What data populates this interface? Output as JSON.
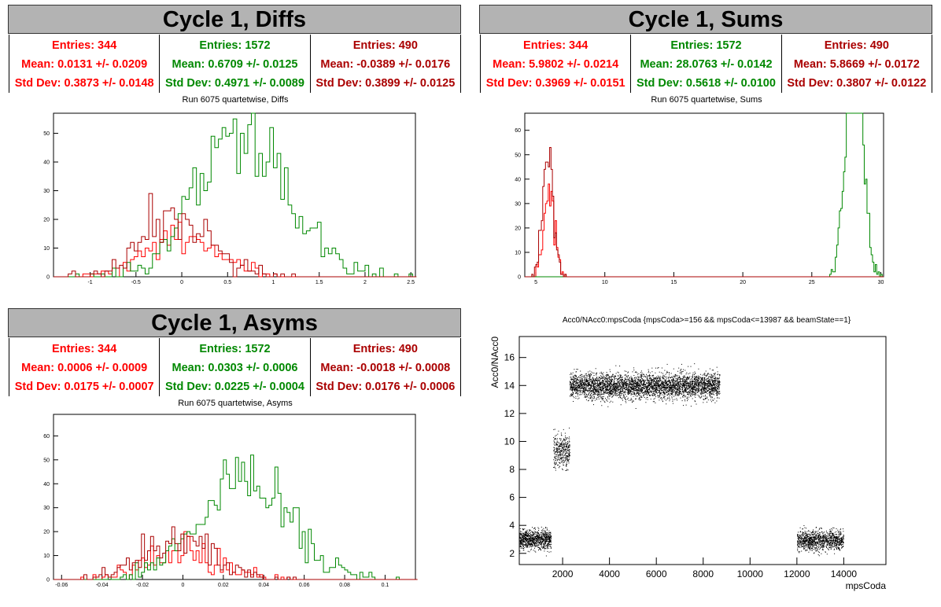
{
  "panels": {
    "diffs": {
      "banner": "Cycle 1, Diffs",
      "stats": [
        {
          "entries": "Entries: 344",
          "mean": "Mean: 0.0131 +/- 0.0209",
          "std": "Std Dev: 0.3873 +/- 0.0148",
          "color": "#ff0000"
        },
        {
          "entries": "Entries: 1572",
          "mean": "Mean: 0.6709 +/- 0.0125",
          "std": "Std Dev: 0.4971 +/- 0.0089",
          "color": "#008800"
        },
        {
          "entries": "Entries: 490",
          "mean": "Mean: -0.0389 +/- 0.0176",
          "std": "Std Dev: 0.3899 +/- 0.0125",
          "color": "#aa0000"
        }
      ],
      "plot_title": "Run 6075 quartetwise, Diffs"
    },
    "sums": {
      "banner": "Cycle 1, Sums",
      "stats": [
        {
          "entries": "Entries: 344",
          "mean": "Mean: 5.9802 +/- 0.0214",
          "std": "Std Dev: 0.3969 +/- 0.0151",
          "color": "#ff0000"
        },
        {
          "entries": "Entries: 1572",
          "mean": "Mean: 28.0763 +/- 0.0142",
          "std": "Std Dev: 0.5618 +/- 0.0100",
          "color": "#008800"
        },
        {
          "entries": "Entries: 490",
          "mean": "Mean: 5.8669 +/- 0.0172",
          "std": "Std Dev: 0.3807 +/- 0.0122",
          "color": "#aa0000"
        }
      ],
      "plot_title": "Run 6075 quartetwise, Sums"
    },
    "asyms": {
      "banner": "Cycle 1, Asyms",
      "stats": [
        {
          "entries": "Entries: 344",
          "mean": "Mean: 0.0006 +/- 0.0009",
          "std": "Std Dev: 0.0175 +/- 0.0007",
          "color": "#ff0000"
        },
        {
          "entries": "Entries: 1572",
          "mean": "Mean: 0.0303 +/- 0.0006",
          "std": "Std Dev: 0.0225 +/- 0.0004",
          "color": "#008800"
        },
        {
          "entries": "Entries: 490",
          "mean": "Mean: -0.0018 +/- 0.0008",
          "std": "Std Dev: 0.0176 +/- 0.0006",
          "color": "#aa0000"
        }
      ],
      "plot_title": "Run 6075 quartetwise, Asyms"
    },
    "scatter": {
      "plot_title": "Acc0/NAcc0:mpsCoda {mpsCoda>=156 && mpsCoda<=13987 && beamState==1}"
    }
  },
  "chart_data": [
    {
      "id": "diffs",
      "type": "bar",
      "title": "Run 6075 quartetwise, Diffs",
      "xlim": [
        -1.4,
        2.55
      ],
      "ylim": [
        0,
        57
      ],
      "xticks": [
        "-1",
        "-0.5",
        "0",
        "0.5",
        "1",
        "1.5",
        "2",
        "2.5"
      ],
      "yticks": [
        "0",
        "10",
        "20",
        "30",
        "40",
        "50"
      ],
      "series": [
        {
          "name": "Entries: 344",
          "color": "#ff0000",
          "shape": "gauss",
          "mean": 0.0131,
          "std": 0.3873,
          "n": 344,
          "bin": 0.04
        },
        {
          "name": "Entries: 1572",
          "color": "#008800",
          "shape": "gauss",
          "mean": 0.6709,
          "std": 0.4971,
          "n": 1572,
          "bin": 0.04
        },
        {
          "name": "Entries: 490",
          "color": "#aa0000",
          "shape": "gauss",
          "mean": -0.0389,
          "std": 0.3899,
          "n": 490,
          "bin": 0.04
        }
      ]
    },
    {
      "id": "sums",
      "type": "bar",
      "title": "Run 6075 quartetwise, Sums",
      "xlim": [
        4.2,
        30.2
      ],
      "ylim": [
        0,
        67
      ],
      "xticks": [
        "5",
        "10",
        "15",
        "20",
        "25",
        "30"
      ],
      "yticks": [
        "0",
        "10",
        "20",
        "30",
        "40",
        "50",
        "60"
      ],
      "series": [
        {
          "name": "Entries: 344",
          "color": "#ff0000",
          "shape": "gauss",
          "mean": 5.9802,
          "std": 0.3969,
          "n": 344,
          "bin": 0.1
        },
        {
          "name": "Entries: 1572",
          "color": "#008800",
          "shape": "gauss",
          "mean": 28.0763,
          "std": 0.5618,
          "n": 1572,
          "bin": 0.1
        },
        {
          "name": "Entries: 490",
          "color": "#aa0000",
          "shape": "gauss",
          "mean": 5.8669,
          "std": 0.3807,
          "n": 490,
          "bin": 0.1
        }
      ]
    },
    {
      "id": "asyms",
      "type": "bar",
      "title": "Run 6075 quartetwise, Asyms",
      "xlim": [
        -0.064,
        0.115
      ],
      "ylim": [
        0,
        69
      ],
      "xticks": [
        "-0.06",
        "-0.04",
        "-0.02",
        "0",
        "0.02",
        "0.04",
        "0.06",
        "0.08",
        "0.1"
      ],
      "yticks": [
        "0",
        "10",
        "20",
        "30",
        "40",
        "50",
        "60"
      ],
      "series": [
        {
          "name": "Entries: 344",
          "color": "#ff0000",
          "shape": "gauss",
          "mean": 0.0006,
          "std": 0.0175,
          "n": 344,
          "bin": 0.0015
        },
        {
          "name": "Entries: 1572",
          "color": "#008800",
          "shape": "gauss",
          "mean": 0.0303,
          "std": 0.0225,
          "n": 1572,
          "bin": 0.0015
        },
        {
          "name": "Entries: 490",
          "color": "#aa0000",
          "shape": "gauss",
          "mean": -0.0018,
          "std": 0.0176,
          "n": 490,
          "bin": 0.0015
        }
      ]
    },
    {
      "id": "scatter",
      "type": "scatter",
      "title": "Acc0/NAcc0:mpsCoda {mpsCoda>=156 && mpsCoda<=13987 && beamState==1}",
      "xlabel": "mpsCoda",
      "ylabel": "Acc0/NAcc0",
      "xlim": [
        150,
        15800
      ],
      "ylim": [
        1.2,
        17.5
      ],
      "xticks": [
        "2000",
        "4000",
        "6000",
        "8000",
        "10000",
        "12000",
        "14000"
      ],
      "yticks": [
        "2",
        "4",
        "6",
        "8",
        "10",
        "12",
        "14",
        "16"
      ],
      "clusters": [
        {
          "x": [
            156,
            1500
          ],
          "y_center": 3.0,
          "y_spread": 0.35,
          "n": 900
        },
        {
          "x": [
            1600,
            2300
          ],
          "y_center": 9.3,
          "y_spread": 0.6,
          "n": 350
        },
        {
          "x": [
            2300,
            8700
          ],
          "y_center": 14.0,
          "y_spread": 0.45,
          "n": 4000
        },
        {
          "x": [
            12000,
            13987
          ],
          "y_center": 2.95,
          "y_spread": 0.35,
          "n": 1100
        }
      ]
    }
  ]
}
